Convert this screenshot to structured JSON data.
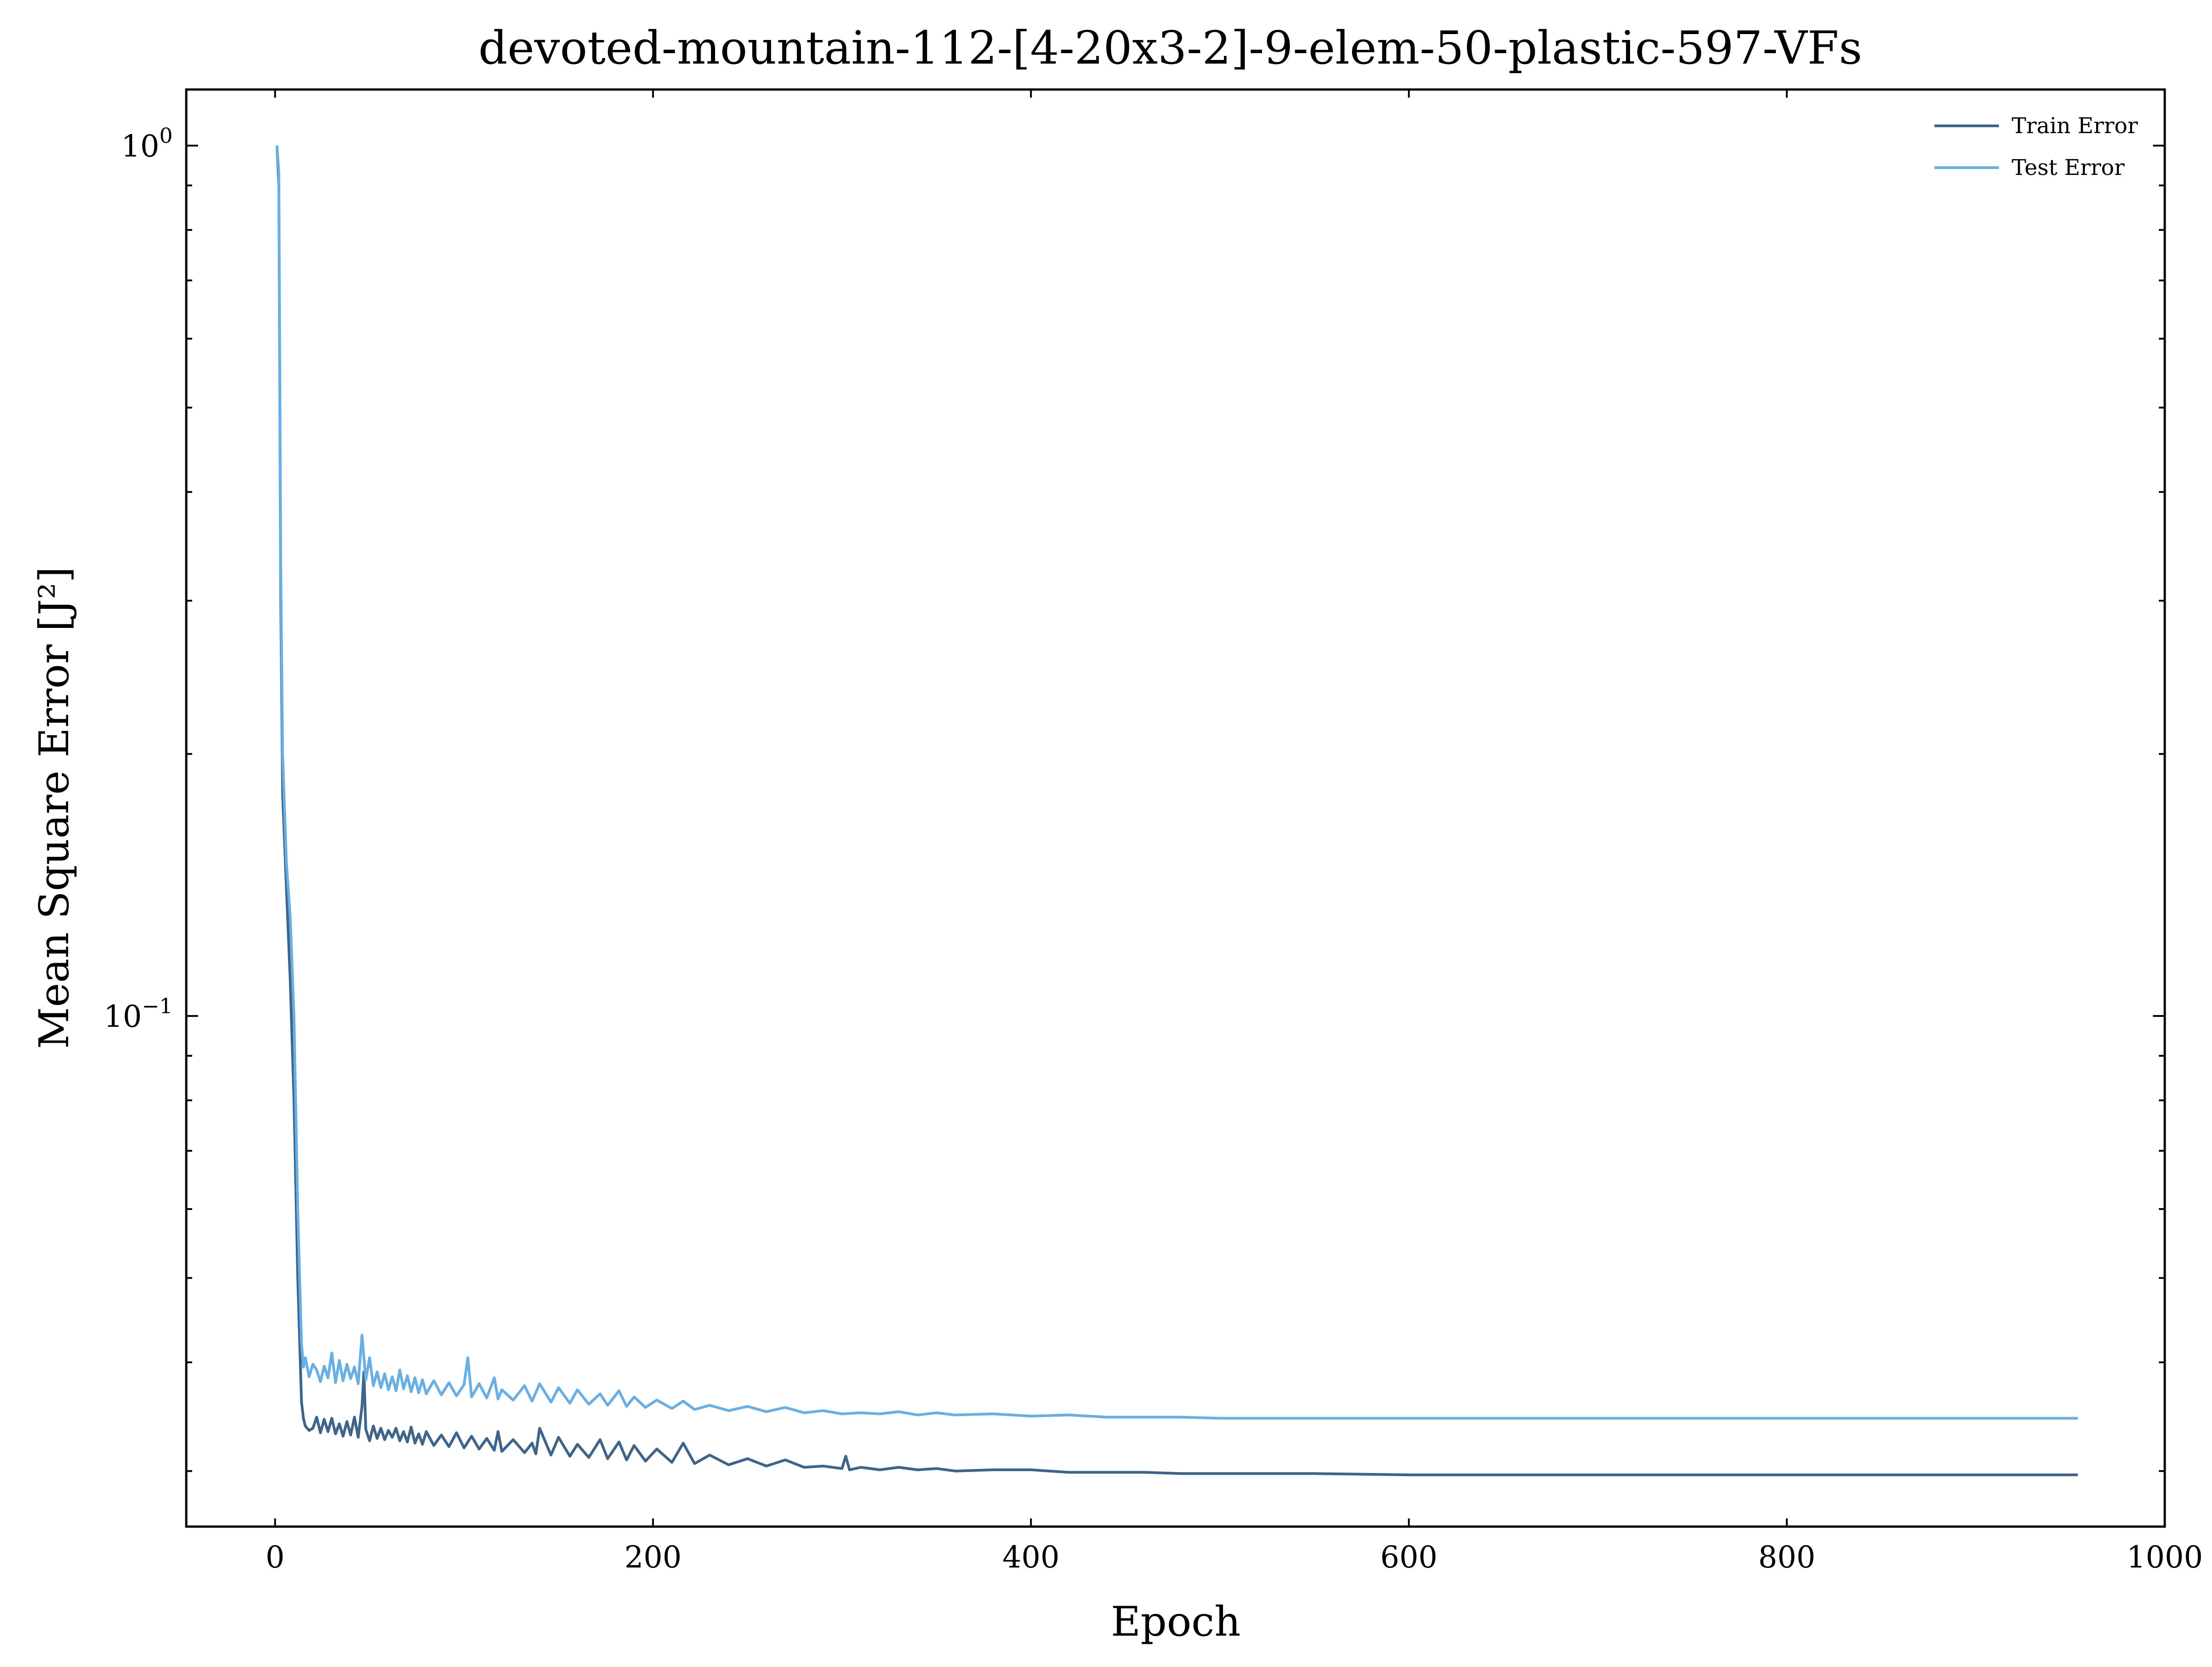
{
  "chart_data": {
    "type": "line",
    "title": "devoted-mountain-112-[4-20x3-2]-9-elem-50-plastic-597-VFs",
    "xlabel": "Epoch",
    "ylabel": "Mean Square Error [J²]",
    "xlim": [
      -47,
      1000
    ],
    "ylim": [
      0.0259,
      1.16
    ],
    "yscale": "log",
    "grid": false,
    "legend": "top-right",
    "x_ticks": [
      {
        "value": 0,
        "label": "0"
      },
      {
        "value": 200,
        "label": "200"
      },
      {
        "value": 400,
        "label": "400"
      },
      {
        "value": 600,
        "label": "600"
      },
      {
        "value": 800,
        "label": "800"
      },
      {
        "value": 1000,
        "label": "1000"
      }
    ],
    "y_ticks": [
      {
        "value": 1,
        "base": "10",
        "exp": "0"
      },
      {
        "value": 0.1,
        "base": "10",
        "exp": "−1"
      }
    ],
    "series": [
      {
        "name": "Train Error",
        "color": "#3e6489",
        "x": [
          1,
          2,
          3,
          4,
          6,
          8,
          10,
          12,
          14,
          15,
          16,
          18,
          20,
          22,
          24,
          26,
          28,
          30,
          32,
          34,
          36,
          38,
          40,
          42,
          44,
          46,
          47,
          48,
          50,
          52,
          54,
          56,
          58,
          60,
          62,
          64,
          66,
          68,
          70,
          72,
          74,
          76,
          78,
          80,
          84,
          88,
          92,
          96,
          100,
          104,
          108,
          112,
          116,
          118,
          120,
          126,
          132,
          136,
          138,
          140,
          146,
          150,
          156,
          160,
          166,
          172,
          176,
          182,
          186,
          190,
          196,
          202,
          210,
          216,
          222,
          230,
          240,
          250,
          260,
          270,
          280,
          290,
          300,
          302,
          304,
          310,
          320,
          330,
          340,
          350,
          360,
          380,
          400,
          420,
          440,
          460,
          480,
          500,
          550,
          600,
          650,
          700,
          750,
          800,
          850,
          900,
          954
        ],
        "y": [
          1.0,
          0.9,
          0.3,
          0.18,
          0.14,
          0.11,
          0.08,
          0.05,
          0.036,
          0.0345,
          0.0338,
          0.0334,
          0.0336,
          0.0346,
          0.0332,
          0.0344,
          0.0333,
          0.0345,
          0.0331,
          0.034,
          0.0329,
          0.0342,
          0.033,
          0.0346,
          0.0328,
          0.0356,
          0.039,
          0.0335,
          0.0325,
          0.0338,
          0.0327,
          0.0336,
          0.0326,
          0.0334,
          0.0328,
          0.0336,
          0.0325,
          0.0333,
          0.0324,
          0.0337,
          0.0323,
          0.0331,
          0.0322,
          0.0333,
          0.0321,
          0.033,
          0.032,
          0.0332,
          0.0319,
          0.0329,
          0.0318,
          0.0327,
          0.0317,
          0.0333,
          0.0316,
          0.0326,
          0.0315,
          0.0323,
          0.0314,
          0.0336,
          0.0313,
          0.0328,
          0.0312,
          0.0322,
          0.0311,
          0.0326,
          0.031,
          0.0324,
          0.0309,
          0.0321,
          0.0308,
          0.0318,
          0.0307,
          0.0323,
          0.0306,
          0.0313,
          0.0305,
          0.031,
          0.0304,
          0.0309,
          0.0303,
          0.0304,
          0.0302,
          0.0312,
          0.0301,
          0.0303,
          0.0301,
          0.0303,
          0.0301,
          0.0302,
          0.03,
          0.0301,
          0.0301,
          0.0299,
          0.0299,
          0.0299,
          0.0298,
          0.0298,
          0.0298,
          0.0297,
          0.0297,
          0.0297,
          0.0297,
          0.0297,
          0.0297,
          0.0297,
          0.0297
        ]
      },
      {
        "name": "Test Error",
        "color": "#6aafe3",
        "x": [
          1,
          2,
          3,
          4,
          6,
          8,
          10,
          12,
          14,
          15,
          16,
          18,
          20,
          22,
          24,
          26,
          28,
          30,
          32,
          34,
          36,
          38,
          40,
          42,
          44,
          46,
          48,
          50,
          52,
          54,
          56,
          58,
          60,
          62,
          64,
          66,
          68,
          70,
          72,
          74,
          76,
          78,
          80,
          84,
          88,
          92,
          96,
          100,
          102,
          104,
          108,
          112,
          116,
          118,
          120,
          126,
          132,
          136,
          140,
          146,
          150,
          156,
          160,
          166,
          172,
          176,
          182,
          186,
          190,
          196,
          202,
          210,
          216,
          222,
          230,
          240,
          250,
          260,
          270,
          280,
          290,
          300,
          310,
          320,
          330,
          340,
          350,
          360,
          380,
          400,
          420,
          440,
          460,
          480,
          500,
          550,
          600,
          650,
          700,
          750,
          800,
          850,
          900,
          954
        ],
        "y": [
          1.0,
          0.93,
          0.33,
          0.2,
          0.15,
          0.13,
          0.1,
          0.06,
          0.042,
          0.0395,
          0.0405,
          0.0385,
          0.0398,
          0.0392,
          0.038,
          0.0396,
          0.0384,
          0.041,
          0.0379,
          0.0402,
          0.0381,
          0.0398,
          0.0383,
          0.0395,
          0.0378,
          0.043,
          0.0382,
          0.0405,
          0.0376,
          0.039,
          0.0374,
          0.0388,
          0.0372,
          0.0385,
          0.0371,
          0.0392,
          0.0373,
          0.0386,
          0.037,
          0.0384,
          0.0369,
          0.0382,
          0.0368,
          0.0381,
          0.0367,
          0.0379,
          0.0366,
          0.0377,
          0.0405,
          0.0365,
          0.0378,
          0.0364,
          0.0384,
          0.0363,
          0.0372,
          0.0362,
          0.0376,
          0.0361,
          0.0378,
          0.036,
          0.0374,
          0.0359,
          0.0372,
          0.0358,
          0.0368,
          0.0357,
          0.0371,
          0.0356,
          0.0365,
          0.0355,
          0.0362,
          0.0354,
          0.0361,
          0.0353,
          0.0357,
          0.0352,
          0.0356,
          0.0351,
          0.0355,
          0.035,
          0.0352,
          0.0349,
          0.035,
          0.0349,
          0.0351,
          0.0348,
          0.035,
          0.0348,
          0.0349,
          0.0347,
          0.0348,
          0.0346,
          0.0346,
          0.0346,
          0.0345,
          0.0345,
          0.0345,
          0.0345,
          0.0345,
          0.0345,
          0.0345,
          0.0345,
          0.0345,
          0.0345
        ]
      }
    ]
  }
}
